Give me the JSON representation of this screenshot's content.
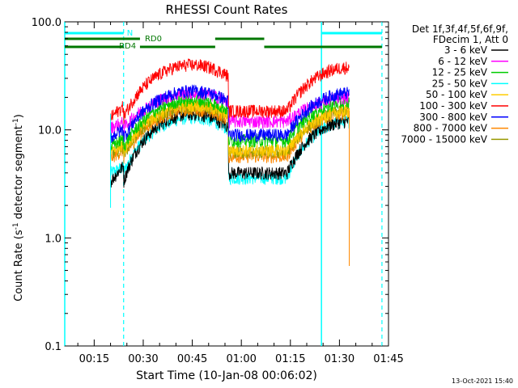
{
  "chart_data": {
    "type": "line",
    "title": "RHESSI Count Rates",
    "xlabel": "Start Time (10-Jan-08 00:06:02)",
    "ylabel_main": "Count Rate (s",
    "ylabel_sup1": "-1",
    "ylabel_mid": " detector segment",
    "ylabel_sup2": "-1",
    "ylabel_end": ")",
    "yscale": "log",
    "ylim": [
      0.1,
      100
    ],
    "xlim_minutes": [
      6.0,
      105.0
    ],
    "x_ticks": [
      {
        "label": "00:15",
        "min": 15
      },
      {
        "label": "00:30",
        "min": 30
      },
      {
        "label": "00:45",
        "min": 45
      },
      {
        "label": "01:00",
        "min": 60
      },
      {
        "label": "01:15",
        "min": 75
      },
      {
        "label": "01:30",
        "min": 90
      },
      {
        "label": "01:45",
        "min": 105
      }
    ],
    "y_ticks": [
      {
        "label": "0.1",
        "value": 0.1
      },
      {
        "label": "1.0",
        "value": 1.0
      },
      {
        "label": "10.0",
        "value": 10.0
      },
      {
        "label": "100.0",
        "value": 100.0
      }
    ],
    "legend_header": [
      "Det 1f,3f,4f,5f,6f,9f,",
      "FDecim 1, Att 0"
    ],
    "legend_position": "right",
    "series": [
      {
        "name": "3 - 6 keV",
        "color": "#000000",
        "profile": {
          "start": 3.3,
          "mid": 6.0,
          "peak": 14.0,
          "trough": 4.0,
          "end": 12.0
        }
      },
      {
        "name": "6 - 12 keV",
        "color": "#ff00ff",
        "profile": {
          "start": 10.5,
          "mid": 13.0,
          "peak": 22.0,
          "trough": 12.0,
          "end": 20.0
        }
      },
      {
        "name": "12 - 25 keV",
        "color": "#00cc00",
        "profile": {
          "start": 7.0,
          "mid": 9.5,
          "peak": 19.0,
          "trough": 8.0,
          "end": 18.0
        }
      },
      {
        "name": "25 - 50 keV",
        "color": "#00ffff",
        "profile": {
          "start": 4.0,
          "mid": 5.0,
          "peak": 13.0,
          "trough": 3.6,
          "end": 12.0
        }
      },
      {
        "name": "50 - 100 keV",
        "color": "#ffcc00",
        "profile": {
          "start": 6.5,
          "mid": 8.5,
          "peak": 17.0,
          "trough": 6.5,
          "end": 15.0
        }
      },
      {
        "name": "100 - 300 keV",
        "color": "#ff0000",
        "profile": {
          "start": 13.0,
          "mid": 20.0,
          "peak": 40.0,
          "trough": 15.0,
          "end": 38.0
        }
      },
      {
        "name": "300 - 800 keV",
        "color": "#0000ff",
        "profile": {
          "start": 8.5,
          "mid": 12.0,
          "peak": 23.0,
          "trough": 9.0,
          "end": 22.0
        }
      },
      {
        "name": "800 - 7000 keV",
        "color": "#ff8800",
        "profile": {
          "start": 5.5,
          "mid": 7.5,
          "peak": 15.5,
          "trough": 5.7,
          "end": 14.5
        }
      },
      {
        "name": "7000 - 15000 keV",
        "color": "#999900",
        "profile": {
          "start": 6.0,
          "mid": 8.0,
          "peak": 16.5,
          "trough": 6.2,
          "end": 15.0
        }
      }
    ],
    "data_start_min": 20.0,
    "data_end_min": 93.0,
    "peak_min": 41.0,
    "dip_start_min": 56.0,
    "dip_end_min": 74.0,
    "annotations": {
      "night_label": "N",
      "night_color": "#00ffff",
      "night_segments": [
        [
          6.0,
          24.0
        ],
        [
          84.5,
          103.0
        ]
      ],
      "night_lines_solid": [
        6.0,
        84.5
      ],
      "night_lines_dashed": [
        24.0,
        103.0
      ],
      "rd0_label": "RD0",
      "rd4_label": "RD4",
      "decim_color": "#007700",
      "rd0_upper_segments": [
        [
          6.0,
          29.0
        ],
        [
          52.0,
          67.0
        ]
      ],
      "rd0_lower_segments": [
        [
          6.0,
          24.0
        ],
        [
          29.0,
          52.0
        ],
        [
          67.0,
          103.0
        ]
      ]
    }
  },
  "timestamp": "13-Oct-2021 15:40"
}
